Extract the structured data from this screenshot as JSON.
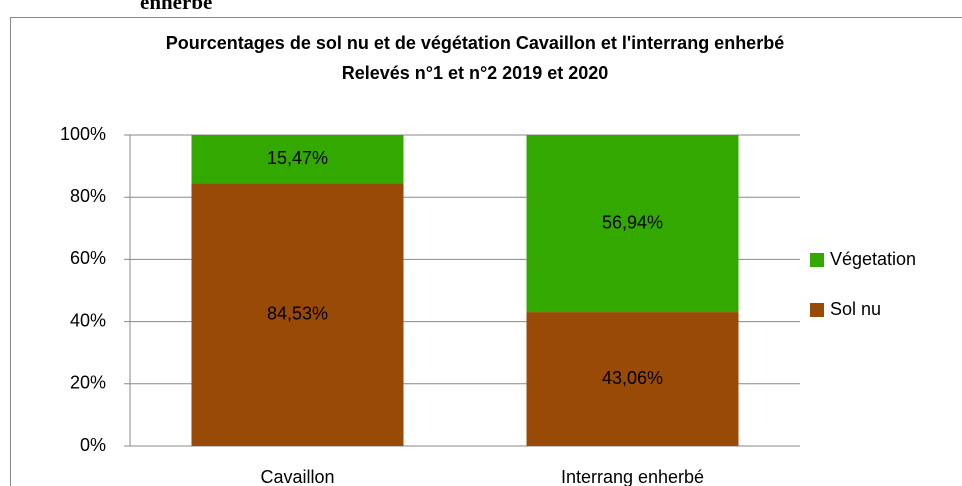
{
  "caption_fragment": "enherbé",
  "chart_data": {
    "type": "stacked_bar",
    "title": "Pourcentages de sol nu et de végétation Cavaillon et l'interrang enherbé",
    "subtitle": "Relevés n°1 et n°2 2019 et 2020",
    "categories": [
      "Cavaillon",
      "Interrang enherbé"
    ],
    "series": [
      {
        "name": "Sol nu",
        "color": "#994a07",
        "values": [
          84.53,
          43.06
        ],
        "value_labels": [
          "84,53%",
          "43,06%"
        ]
      },
      {
        "name": "Végetation",
        "color": "#33a800",
        "values": [
          15.47,
          56.94
        ],
        "value_labels": [
          "15,47%",
          "56,94%"
        ]
      }
    ],
    "ylim": [
      0,
      100
    ],
    "yticks": [
      {
        "value": 0,
        "label": "0%"
      },
      {
        "value": 20,
        "label": "20%"
      },
      {
        "value": 40,
        "label": "40%"
      },
      {
        "value": 60,
        "label": "60%"
      },
      {
        "value": 80,
        "label": "80%"
      },
      {
        "value": 100,
        "label": "100%"
      }
    ],
    "grid": true,
    "legend": "right"
  }
}
